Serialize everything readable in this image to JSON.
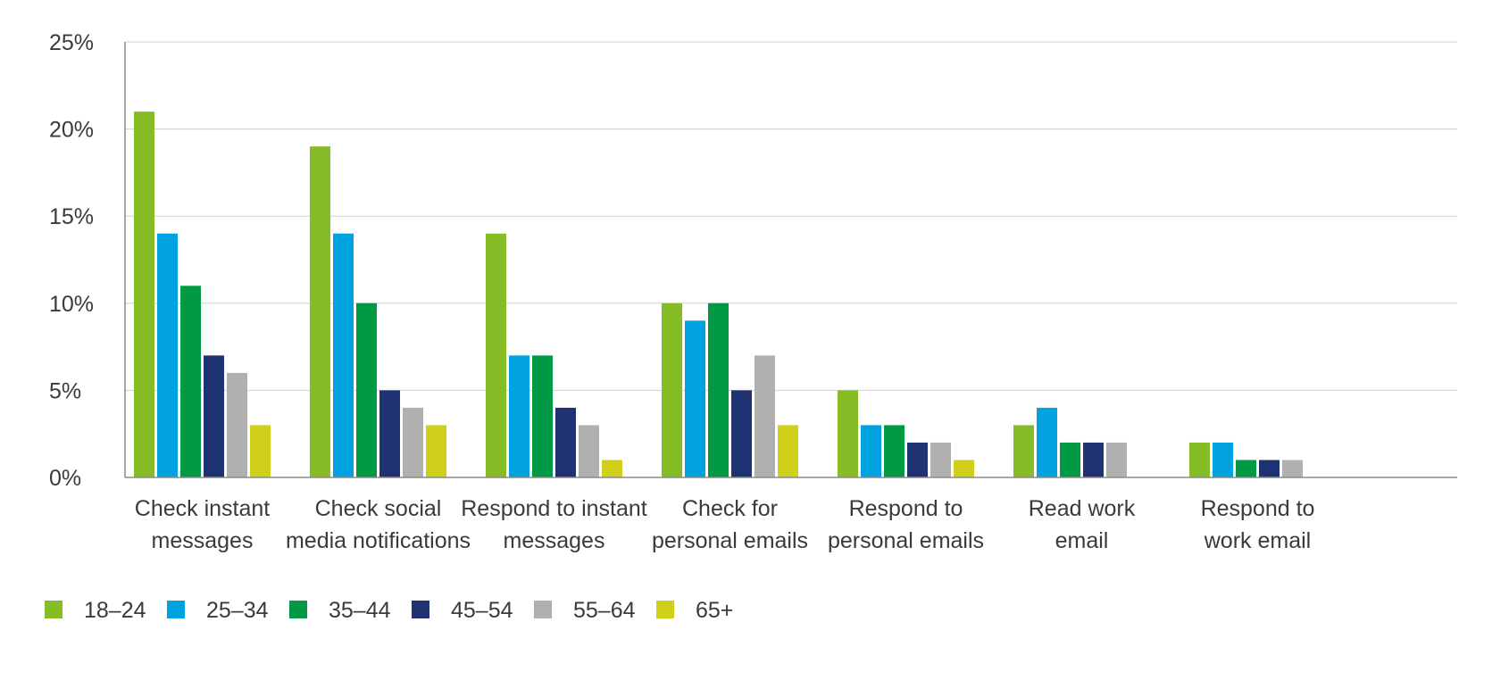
{
  "chart_data": {
    "type": "bar",
    "title": "",
    "xlabel": "",
    "ylabel": "",
    "ylim": [
      0,
      25
    ],
    "yticks": [
      0,
      5,
      10,
      15,
      20,
      25
    ],
    "ytick_labels": [
      "0%",
      "5%",
      "10%",
      "15%",
      "20%",
      "25%"
    ],
    "grid": true,
    "legend_position": "bottom-left",
    "categories": [
      [
        "Check instant",
        "messages"
      ],
      [
        "Check social",
        "media notifications"
      ],
      [
        "Respond to instant",
        "messages"
      ],
      [
        "Check for",
        "personal emails"
      ],
      [
        "Respond to",
        "personal emails"
      ],
      [
        "Read work",
        "email"
      ],
      [
        "Respond to",
        "work email"
      ]
    ],
    "series": [
      {
        "name": "18–24",
        "color": "#86bc25",
        "values": [
          21,
          19,
          14,
          10,
          5,
          3,
          2
        ]
      },
      {
        "name": "25–34",
        "color": "#00a3e0",
        "values": [
          14,
          14,
          7,
          9,
          3,
          4,
          2
        ]
      },
      {
        "name": "35–44",
        "color": "#009a44",
        "values": [
          11,
          10,
          7,
          10,
          3,
          2,
          1
        ]
      },
      {
        "name": "45–54",
        "color": "#1f3372",
        "values": [
          7,
          5,
          4,
          5,
          2,
          2,
          1
        ]
      },
      {
        "name": "55–64",
        "color": "#b0b0b0",
        "values": [
          6,
          4,
          3,
          7,
          2,
          2,
          1
        ]
      },
      {
        "name": "65+",
        "color": "#d0d01a",
        "values": [
          3,
          3,
          1,
          3,
          1,
          0,
          0
        ]
      }
    ]
  }
}
